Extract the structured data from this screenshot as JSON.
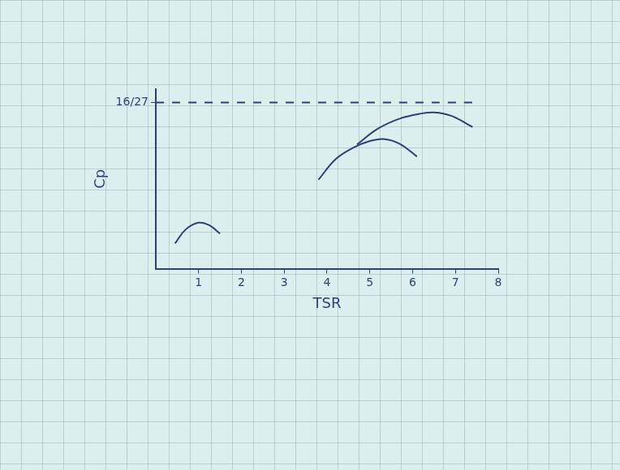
{
  "chart_data": {
    "type": "line",
    "x_label": "TSR",
    "y_label": "Cp",
    "xlim": [
      0,
      8
    ],
    "xticks": [
      1,
      2,
      3,
      4,
      5,
      6,
      7,
      8
    ],
    "ylim": [
      0,
      0.64
    ],
    "yticks": [
      {
        "value": 0.5926,
        "label": "16/27"
      }
    ],
    "grid": false,
    "series": [
      {
        "color": "#2b3f7a",
        "line_style": "dashed",
        "marker": "none",
        "x": [
          0,
          7.5
        ],
        "values": [
          0.5926,
          0.5926
        ]
      },
      {
        "color": "#2b3f7a",
        "line_style": "solid",
        "marker": "none",
        "x": [
          0.45,
          0.7,
          1.0,
          1.25,
          1.5
        ],
        "values": [
          0.09,
          0.14,
          0.164,
          0.155,
          0.125
        ]
      },
      {
        "color": "#2b3f7a",
        "line_style": "solid",
        "marker": "none",
        "x": [
          3.8,
          4.2,
          4.6,
          5.0,
          5.35,
          5.7,
          6.1
        ],
        "values": [
          0.317,
          0.39,
          0.43,
          0.455,
          0.462,
          0.445,
          0.4
        ]
      },
      {
        "color": "#2b3f7a",
        "line_style": "solid",
        "marker": "none",
        "x": [
          4.7,
          5.2,
          5.7,
          6.2,
          6.5,
          6.9,
          7.4
        ],
        "values": [
          0.443,
          0.5,
          0.535,
          0.553,
          0.557,
          0.545,
          0.505
        ]
      }
    ]
  }
}
